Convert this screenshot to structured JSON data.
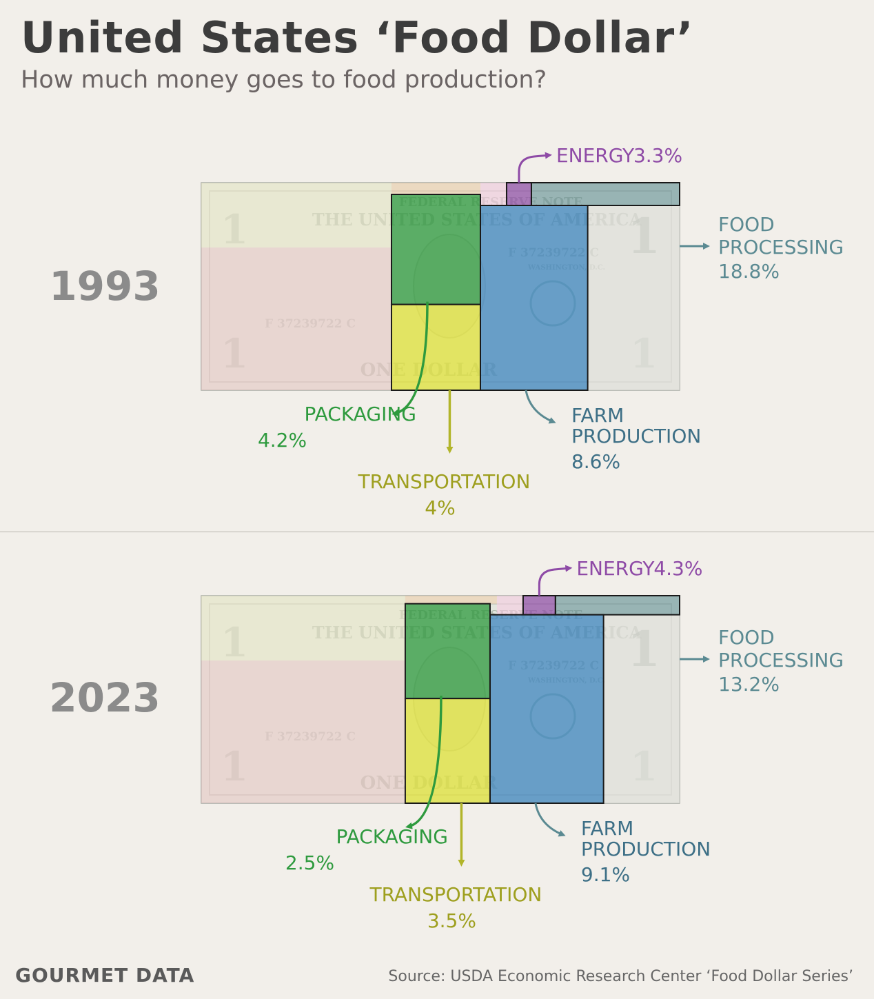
{
  "title": "United States ‘Food Dollar’",
  "subtitle": "How much money goes to food production?",
  "brand": "GOURMET DATA",
  "source": "Source: USDA Economic Research Center ‘Food Dollar Series’",
  "bill_text": {
    "top": "FEDERAL RESERVE NOTE",
    "country": "THE UNITED STATES OF AMERICA",
    "serial": "F 37239722 C",
    "city": "WASHINGTON, D.C.",
    "denomination_word": "ONE DOLLAR",
    "digit": "1"
  },
  "colors": {
    "energy": "#8e4aa6",
    "food_processing": "#5b8a92",
    "farm_production": "#3d6f86",
    "packaging": "#2e9a3e",
    "transportation": "#b2b52a",
    "background": "#f2efea"
  },
  "chart_data": [
    {
      "type": "treemap",
      "year": "1993",
      "segments": [
        {
          "name": "ENERGY",
          "value": 3.3,
          "label": "3.3%"
        },
        {
          "name": "FOOD PROCESSING",
          "value": 18.8,
          "label": "18.8%"
        },
        {
          "name": "FARM PRODUCTION",
          "value": 8.6,
          "label": "8.6%"
        },
        {
          "name": "PACKAGING",
          "value": 4.2,
          "label": "4.2%"
        },
        {
          "name": "TRANSPORTATION",
          "value": 4.0,
          "label": "4%"
        }
      ]
    },
    {
      "type": "treemap",
      "year": "2023",
      "segments": [
        {
          "name": "ENERGY",
          "value": 4.3,
          "label": "4.3%"
        },
        {
          "name": "FOOD PROCESSING",
          "value": 13.2,
          "label": "13.2%"
        },
        {
          "name": "FARM PRODUCTION",
          "value": 9.1,
          "label": "9.1%"
        },
        {
          "name": "PACKAGING",
          "value": 2.5,
          "label": "2.5%"
        },
        {
          "name": "TRANSPORTATION",
          "value": 3.5,
          "label": "3.5%"
        }
      ]
    }
  ]
}
